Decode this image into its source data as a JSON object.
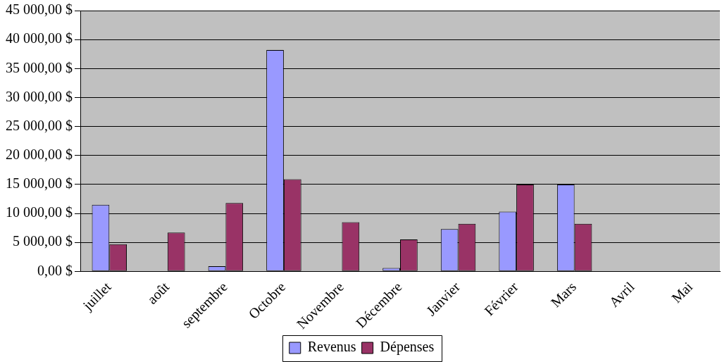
{
  "chart_data": {
    "type": "bar",
    "categories": [
      "juillet",
      "août",
      "septembre",
      "Octobre",
      "Novembre",
      "Décembre",
      "Janvier",
      "Février",
      "Mars",
      "Avril",
      "Mai"
    ],
    "series": [
      {
        "name": "Revenus",
        "color": "#9999ff",
        "values": [
          11500,
          0,
          900,
          38200,
          null,
          600,
          7300,
          10300,
          15000,
          0,
          0
        ]
      },
      {
        "name": "Dépenses",
        "color": "#993366",
        "values": [
          4700,
          6700,
          11800,
          15900,
          8500,
          5500,
          8200,
          15000,
          8200,
          0,
          0
        ]
      }
    ],
    "ylim": [
      0,
      45000
    ],
    "yticks": [
      {
        "value": 0,
        "label": "0,00 $"
      },
      {
        "value": 5000,
        "label": "5 000,00 $"
      },
      {
        "value": 10000,
        "label": "10 000,00 $"
      },
      {
        "value": 15000,
        "label": "15 000,00 $"
      },
      {
        "value": 20000,
        "label": "20 000,00 $"
      },
      {
        "value": 25000,
        "label": "25 000,00 $"
      },
      {
        "value": 30000,
        "label": "30 000,00 $"
      },
      {
        "value": 35000,
        "label": "35 000,00 $"
      },
      {
        "value": 40000,
        "label": "40 000,00 $"
      },
      {
        "value": 45000,
        "label": "45 000,00 $"
      }
    ],
    "grid": "y",
    "legend": "bottom"
  }
}
